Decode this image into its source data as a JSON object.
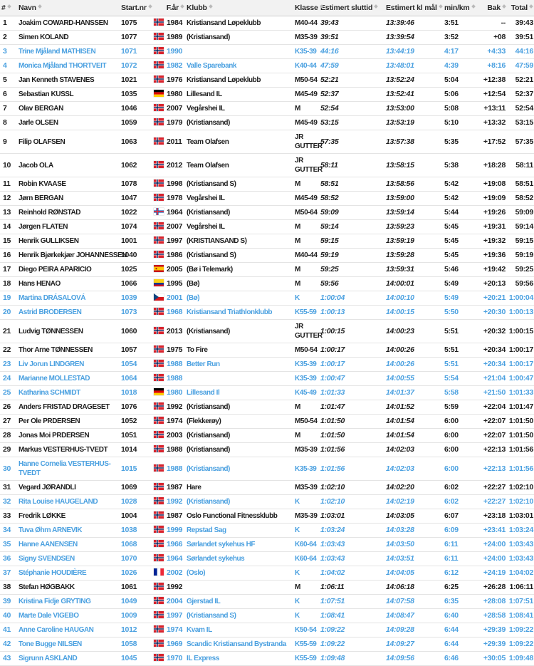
{
  "colors": {
    "female_row_blue": "#4aa0e0",
    "default_text": "#1d1d1d",
    "header_background": "#f2f2f2",
    "row_divider": "#e4e4e4",
    "sort_icon_gray": "#b9b9b9"
  },
  "table": {
    "columns": [
      {
        "key": "pos",
        "label": "#"
      },
      {
        "key": "name",
        "label": "Navn"
      },
      {
        "key": "bib",
        "label": "Start.nr"
      },
      {
        "key": "year",
        "label": "F.år"
      },
      {
        "key": "club",
        "label": "Klubb"
      },
      {
        "key": "class",
        "label": "Klasse"
      },
      {
        "key": "estfin",
        "label": "Estimert sluttid"
      },
      {
        "key": "estclk",
        "label": "Estimert kl mål"
      },
      {
        "key": "pace",
        "label": "min/km"
      },
      {
        "key": "behind",
        "label": "Bak"
      },
      {
        "key": "total",
        "label": "Total"
      }
    ],
    "rows": [
      {
        "pos": "1",
        "name": "Joakim COWARD-HANSSEN",
        "bib": "1075",
        "flag": "no",
        "year": "1984",
        "club": "Kristiansand Løpeklubb",
        "class": "M40-44",
        "estfin": "39:43",
        "estclk": "13:39:46",
        "pace": "3:51",
        "behind": "--",
        "total": "39:43",
        "blue": false
      },
      {
        "pos": "2",
        "name": "Simen KOLAND",
        "bib": "1077",
        "flag": "no",
        "year": "1989",
        "club": "(Kristiansand)",
        "class": "M35-39",
        "estfin": "39:51",
        "estclk": "13:39:54",
        "pace": "3:52",
        "behind": "+08",
        "total": "39:51",
        "blue": false
      },
      {
        "pos": "3",
        "name": "Trine Mjåland MATHISEN",
        "bib": "1071",
        "flag": "no",
        "year": "1990",
        "club": "",
        "class": "K35-39",
        "estfin": "44:16",
        "estclk": "13:44:19",
        "pace": "4:17",
        "behind": "+4:33",
        "total": "44:16",
        "blue": true
      },
      {
        "pos": "4",
        "name": "Monica Mjåland THORTVEIT",
        "bib": "1072",
        "flag": "no",
        "year": "1982",
        "club": "Valle Sparebank",
        "class": "K40-44",
        "estfin": "47:59",
        "estclk": "13:48:01",
        "pace": "4:39",
        "behind": "+8:16",
        "total": "47:59",
        "blue": true
      },
      {
        "pos": "5",
        "name": "Jan Kenneth STAVENES",
        "bib": "1021",
        "flag": "no",
        "year": "1976",
        "club": "Kristiansand Løpeklubb",
        "class": "M50-54",
        "estfin": "52:21",
        "estclk": "13:52:24",
        "pace": "5:04",
        "behind": "+12:38",
        "total": "52:21",
        "blue": false
      },
      {
        "pos": "6",
        "name": "Sebastian KUSSL",
        "bib": "1035",
        "flag": "de",
        "year": "1980",
        "club": "Lillesand IL",
        "class": "M45-49",
        "estfin": "52:37",
        "estclk": "13:52:41",
        "pace": "5:06",
        "behind": "+12:54",
        "total": "52:37",
        "blue": false
      },
      {
        "pos": "7",
        "name": "Olav BERGAN",
        "bib": "1046",
        "flag": "no",
        "year": "2007",
        "club": "Vegårshei IL",
        "class": "M",
        "estfin": "52:54",
        "estclk": "13:53:00",
        "pace": "5:08",
        "behind": "+13:11",
        "total": "52:54",
        "blue": false
      },
      {
        "pos": "8",
        "name": "Jarle OLSEN",
        "bib": "1059",
        "flag": "no",
        "year": "1979",
        "club": "(Kristiansand)",
        "class": "M45-49",
        "estfin": "53:15",
        "estclk": "13:53:19",
        "pace": "5:10",
        "behind": "+13:32",
        "total": "53:15",
        "blue": false
      },
      {
        "pos": "9",
        "name": "Filip OLAFSEN",
        "bib": "1063",
        "flag": "no",
        "year": "2011",
        "club": "Team Olafsen",
        "class": "JR GUTTER",
        "estfin": "57:35",
        "estclk": "13:57:38",
        "pace": "5:35",
        "behind": "+17:52",
        "total": "57:35",
        "blue": false
      },
      {
        "pos": "10",
        "name": "Jacob OLA",
        "bib": "1062",
        "flag": "no",
        "year": "2012",
        "club": "Team Olafsen",
        "class": "JR GUTTER",
        "estfin": "58:11",
        "estclk": "13:58:15",
        "pace": "5:38",
        "behind": "+18:28",
        "total": "58:11",
        "blue": false
      },
      {
        "pos": "11",
        "name": "Robin KVAASE",
        "bib": "1078",
        "flag": "no",
        "year": "1998",
        "club": "(Kristiansand S)",
        "class": "M",
        "estfin": "58:51",
        "estclk": "13:58:56",
        "pace": "5:42",
        "behind": "+19:08",
        "total": "58:51",
        "blue": false
      },
      {
        "pos": "12",
        "name": "Jørn BERGAN",
        "bib": "1047",
        "flag": "no",
        "year": "1978",
        "club": "Vegårshei IL",
        "class": "M45-49",
        "estfin": "58:52",
        "estclk": "13:59:00",
        "pace": "5:42",
        "behind": "+19:09",
        "total": "58:52",
        "blue": false
      },
      {
        "pos": "13",
        "name": "Reinhold RØNSTAD",
        "bib": "1022",
        "flag": "fo",
        "year": "1964",
        "club": "(Kristiansand)",
        "class": "M50-64",
        "estfin": "59:09",
        "estclk": "13:59:14",
        "pace": "5:44",
        "behind": "+19:26",
        "total": "59:09",
        "blue": false
      },
      {
        "pos": "14",
        "name": "Jørgen FLATEN",
        "bib": "1074",
        "flag": "no",
        "year": "2007",
        "club": "Vegårshei IL",
        "class": "M",
        "estfin": "59:14",
        "estclk": "13:59:23",
        "pace": "5:45",
        "behind": "+19:31",
        "total": "59:14",
        "blue": false
      },
      {
        "pos": "15",
        "name": "Henrik GULLIKSEN",
        "bib": "1001",
        "flag": "no",
        "year": "1997",
        "club": "(KRISTIANSAND S)",
        "class": "M",
        "estfin": "59:15",
        "estclk": "13:59:19",
        "pace": "5:45",
        "behind": "+19:32",
        "total": "59:15",
        "blue": false
      },
      {
        "pos": "16",
        "name": "Henrik Bjørkekjær JOHANNESSEN",
        "bib": "1040",
        "flag": "no",
        "year": "1986",
        "club": "(Kristiansand S)",
        "class": "M40-44",
        "estfin": "59:19",
        "estclk": "13:59:28",
        "pace": "5:45",
        "behind": "+19:36",
        "total": "59:19",
        "blue": false
      },
      {
        "pos": "17",
        "name": "Diego PEIRA APARICIO",
        "bib": "1025",
        "flag": "es",
        "year": "2005",
        "club": "(Bø i Telemark)",
        "class": "M",
        "estfin": "59:25",
        "estclk": "13:59:31",
        "pace": "5:46",
        "behind": "+19:42",
        "total": "59:25",
        "blue": false
      },
      {
        "pos": "18",
        "name": "Hans HENAO",
        "bib": "1066",
        "flag": "co",
        "year": "1995",
        "club": "(Bø)",
        "class": "M",
        "estfin": "59:56",
        "estclk": "14:00:01",
        "pace": "5:49",
        "behind": "+20:13",
        "total": "59:56",
        "blue": false
      },
      {
        "pos": "19",
        "name": "Martina DRÁSALOVÁ",
        "bib": "1039",
        "flag": "cz",
        "year": "2001",
        "club": "(Bø)",
        "class": "K",
        "estfin": "1:00:04",
        "estclk": "14:00:10",
        "pace": "5:49",
        "behind": "+20:21",
        "total": "1:00:04",
        "blue": true
      },
      {
        "pos": "20",
        "name": "Astrid BRODERSEN",
        "bib": "1073",
        "flag": "no",
        "year": "1968",
        "club": "Kristiansand Triathlonklubb",
        "class": "K55-59",
        "estfin": "1:00:13",
        "estclk": "14:00:15",
        "pace": "5:50",
        "behind": "+20:30",
        "total": "1:00:13",
        "blue": true
      },
      {
        "pos": "21",
        "name": "Ludvig TØNNESSEN",
        "bib": "1060",
        "flag": "no",
        "year": "2013",
        "club": "(Kristiansand)",
        "class": "JR GUTTER",
        "estfin": "1:00:15",
        "estclk": "14:00:23",
        "pace": "5:51",
        "behind": "+20:32",
        "total": "1:00:15",
        "blue": false
      },
      {
        "pos": "22",
        "name": "Thor Arne TØNNESSEN",
        "bib": "1057",
        "flag": "no",
        "year": "1975",
        "club": "To Fire",
        "class": "M50-54",
        "estfin": "1:00:17",
        "estclk": "14:00:26",
        "pace": "5:51",
        "behind": "+20:34",
        "total": "1:00:17",
        "blue": false
      },
      {
        "pos": "23",
        "name": "Liv Jorun LINDGREN",
        "bib": "1054",
        "flag": "no",
        "year": "1988",
        "club": "Better Run",
        "class": "K35-39",
        "estfin": "1:00:17",
        "estclk": "14:00:26",
        "pace": "5:51",
        "behind": "+20:34",
        "total": "1:00:17",
        "blue": true
      },
      {
        "pos": "24",
        "name": "Marianne MOLLESTAD",
        "bib": "1064",
        "flag": "no",
        "year": "1988",
        "club": "",
        "class": "K35-39",
        "estfin": "1:00:47",
        "estclk": "14:00:55",
        "pace": "5:54",
        "behind": "+21:04",
        "total": "1:00:47",
        "blue": true
      },
      {
        "pos": "25",
        "name": "Katharina SCHMIDT",
        "bib": "1018",
        "flag": "de",
        "year": "1980",
        "club": "Lillesand Il",
        "class": "K45-49",
        "estfin": "1:01:33",
        "estclk": "14:01:37",
        "pace": "5:58",
        "behind": "+21:50",
        "total": "1:01:33",
        "blue": true
      },
      {
        "pos": "26",
        "name": "Anders FRISTAD DRAGESET",
        "bib": "1076",
        "flag": "no",
        "year": "1992",
        "club": "(Kristiansand)",
        "class": "M",
        "estfin": "1:01:47",
        "estclk": "14:01:52",
        "pace": "5:59",
        "behind": "+22:04",
        "total": "1:01:47",
        "blue": false
      },
      {
        "pos": "27",
        "name": "Per Ole PRDERSEN",
        "bib": "1052",
        "flag": "no",
        "year": "1974",
        "club": "(Flekkerøy)",
        "class": "M50-54",
        "estfin": "1:01:50",
        "estclk": "14:01:54",
        "pace": "6:00",
        "behind": "+22:07",
        "total": "1:01:50",
        "blue": false
      },
      {
        "pos": "28",
        "name": "Jonas Moi PRDERSEN",
        "bib": "1051",
        "flag": "no",
        "year": "2003",
        "club": "(Kristiansand)",
        "class": "M",
        "estfin": "1:01:50",
        "estclk": "14:01:54",
        "pace": "6:00",
        "behind": "+22:07",
        "total": "1:01:50",
        "blue": false
      },
      {
        "pos": "29",
        "name": "Markus VESTERHUS-TVEDT",
        "bib": "1014",
        "flag": "no",
        "year": "1988",
        "club": "(Kristiansand)",
        "class": "M35-39",
        "estfin": "1:01:56",
        "estclk": "14:02:03",
        "pace": "6:00",
        "behind": "+22:13",
        "total": "1:01:56",
        "blue": false
      },
      {
        "pos": "30",
        "name": "Hanne Cornelia VESTERHUS-\nTVEDT",
        "bib": "1015",
        "flag": "no",
        "year": "1988",
        "club": "(Kristiansand)",
        "class": "K35-39",
        "estfin": "1:01:56",
        "estclk": "14:02:03",
        "pace": "6:00",
        "behind": "+22:13",
        "total": "1:01:56",
        "blue": true
      },
      {
        "pos": "31",
        "name": "Vegard JØRANDLI",
        "bib": "1069",
        "flag": "no",
        "year": "1987",
        "club": "Hare",
        "class": "M35-39",
        "estfin": "1:02:10",
        "estclk": "14:02:20",
        "pace": "6:02",
        "behind": "+22:27",
        "total": "1:02:10",
        "blue": false
      },
      {
        "pos": "32",
        "name": "Rita Louise HAUGELAND",
        "bib": "1028",
        "flag": "no",
        "year": "1992",
        "club": "(Kristiansand)",
        "class": "K",
        "estfin": "1:02:10",
        "estclk": "14:02:19",
        "pace": "6:02",
        "behind": "+22:27",
        "total": "1:02:10",
        "blue": true
      },
      {
        "pos": "33",
        "name": "Fredrik LØKKE",
        "bib": "1004",
        "flag": "no",
        "year": "1987",
        "club": "Oslo Functional Fitnessklubb",
        "class": "M35-39",
        "estfin": "1:03:01",
        "estclk": "14:03:05",
        "pace": "6:07",
        "behind": "+23:18",
        "total": "1:03:01",
        "blue": false
      },
      {
        "pos": "34",
        "name": "Tuva Øhrn ARNEVIK",
        "bib": "1038",
        "flag": "no",
        "year": "1999",
        "club": "Repstad Sag",
        "class": "K",
        "estfin": "1:03:24",
        "estclk": "14:03:28",
        "pace": "6:09",
        "behind": "+23:41",
        "total": "1:03:24",
        "blue": true
      },
      {
        "pos": "35",
        "name": "Hanne AANENSEN",
        "bib": "1068",
        "flag": "no",
        "year": "1966",
        "club": "Sørlandet sykehus HF",
        "class": "K60-64",
        "estfin": "1:03:43",
        "estclk": "14:03:50",
        "pace": "6:11",
        "behind": "+24:00",
        "total": "1:03:43",
        "blue": true
      },
      {
        "pos": "36",
        "name": "Signy SVENDSEN",
        "bib": "1070",
        "flag": "no",
        "year": "1964",
        "club": "Sørlandet sykehus",
        "class": "K60-64",
        "estfin": "1:03:43",
        "estclk": "14:03:51",
        "pace": "6:11",
        "behind": "+24:00",
        "total": "1:03:43",
        "blue": true
      },
      {
        "pos": "37",
        "name": "Stéphanie HOUDIÈRE",
        "bib": "1026",
        "flag": "fr",
        "year": "2002",
        "club": "(Oslo)",
        "class": "K",
        "estfin": "1:04:02",
        "estclk": "14:04:05",
        "pace": "6:12",
        "behind": "+24:19",
        "total": "1:04:02",
        "blue": true
      },
      {
        "pos": "38",
        "name": "Stefan HØGBAKK",
        "bib": "1061",
        "flag": "no",
        "year": "1992",
        "club": "",
        "class": "M",
        "estfin": "1:06:11",
        "estclk": "14:06:18",
        "pace": "6:25",
        "behind": "+26:28",
        "total": "1:06:11",
        "blue": false
      },
      {
        "pos": "39",
        "name": "Kristina Fidje GRYTING",
        "bib": "1049",
        "flag": "no",
        "year": "2004",
        "club": "Gjerstad IL",
        "class": "K",
        "estfin": "1:07:51",
        "estclk": "14:07:58",
        "pace": "6:35",
        "behind": "+28:08",
        "total": "1:07:51",
        "blue": true
      },
      {
        "pos": "40",
        "name": "Marte Dale VIGEBO",
        "bib": "1009",
        "flag": "no",
        "year": "1997",
        "club": "(Kristiansand S)",
        "class": "K",
        "estfin": "1:08:41",
        "estclk": "14:08:47",
        "pace": "6:40",
        "behind": "+28:58",
        "total": "1:08:41",
        "blue": true
      },
      {
        "pos": "41",
        "name": "Anne Caroline HAUGAN",
        "bib": "1012",
        "flag": "no",
        "year": "1974",
        "club": "Kvam IL",
        "class": "K50-54",
        "estfin": "1:09:22",
        "estclk": "14:09:28",
        "pace": "6:44",
        "behind": "+29:39",
        "total": "1:09:22",
        "blue": true
      },
      {
        "pos": "42",
        "name": "Tone Bugge NILSEN",
        "bib": "1058",
        "flag": "no",
        "year": "1969",
        "club": "Scandic Kristiansand Bystranda",
        "class": "K55-59",
        "estfin": "1:09:22",
        "estclk": "14:09:27",
        "pace": "6:44",
        "behind": "+29:39",
        "total": "1:09:22",
        "blue": true
      },
      {
        "pos": "43",
        "name": "Sigrunn ASKLAND",
        "bib": "1045",
        "flag": "no",
        "year": "1970",
        "club": "IL Express",
        "class": "K55-59",
        "estfin": "1:09:48",
        "estclk": "14:09:56",
        "pace": "6:46",
        "behind": "+30:05",
        "total": "1:09:48",
        "blue": true
      }
    ]
  }
}
